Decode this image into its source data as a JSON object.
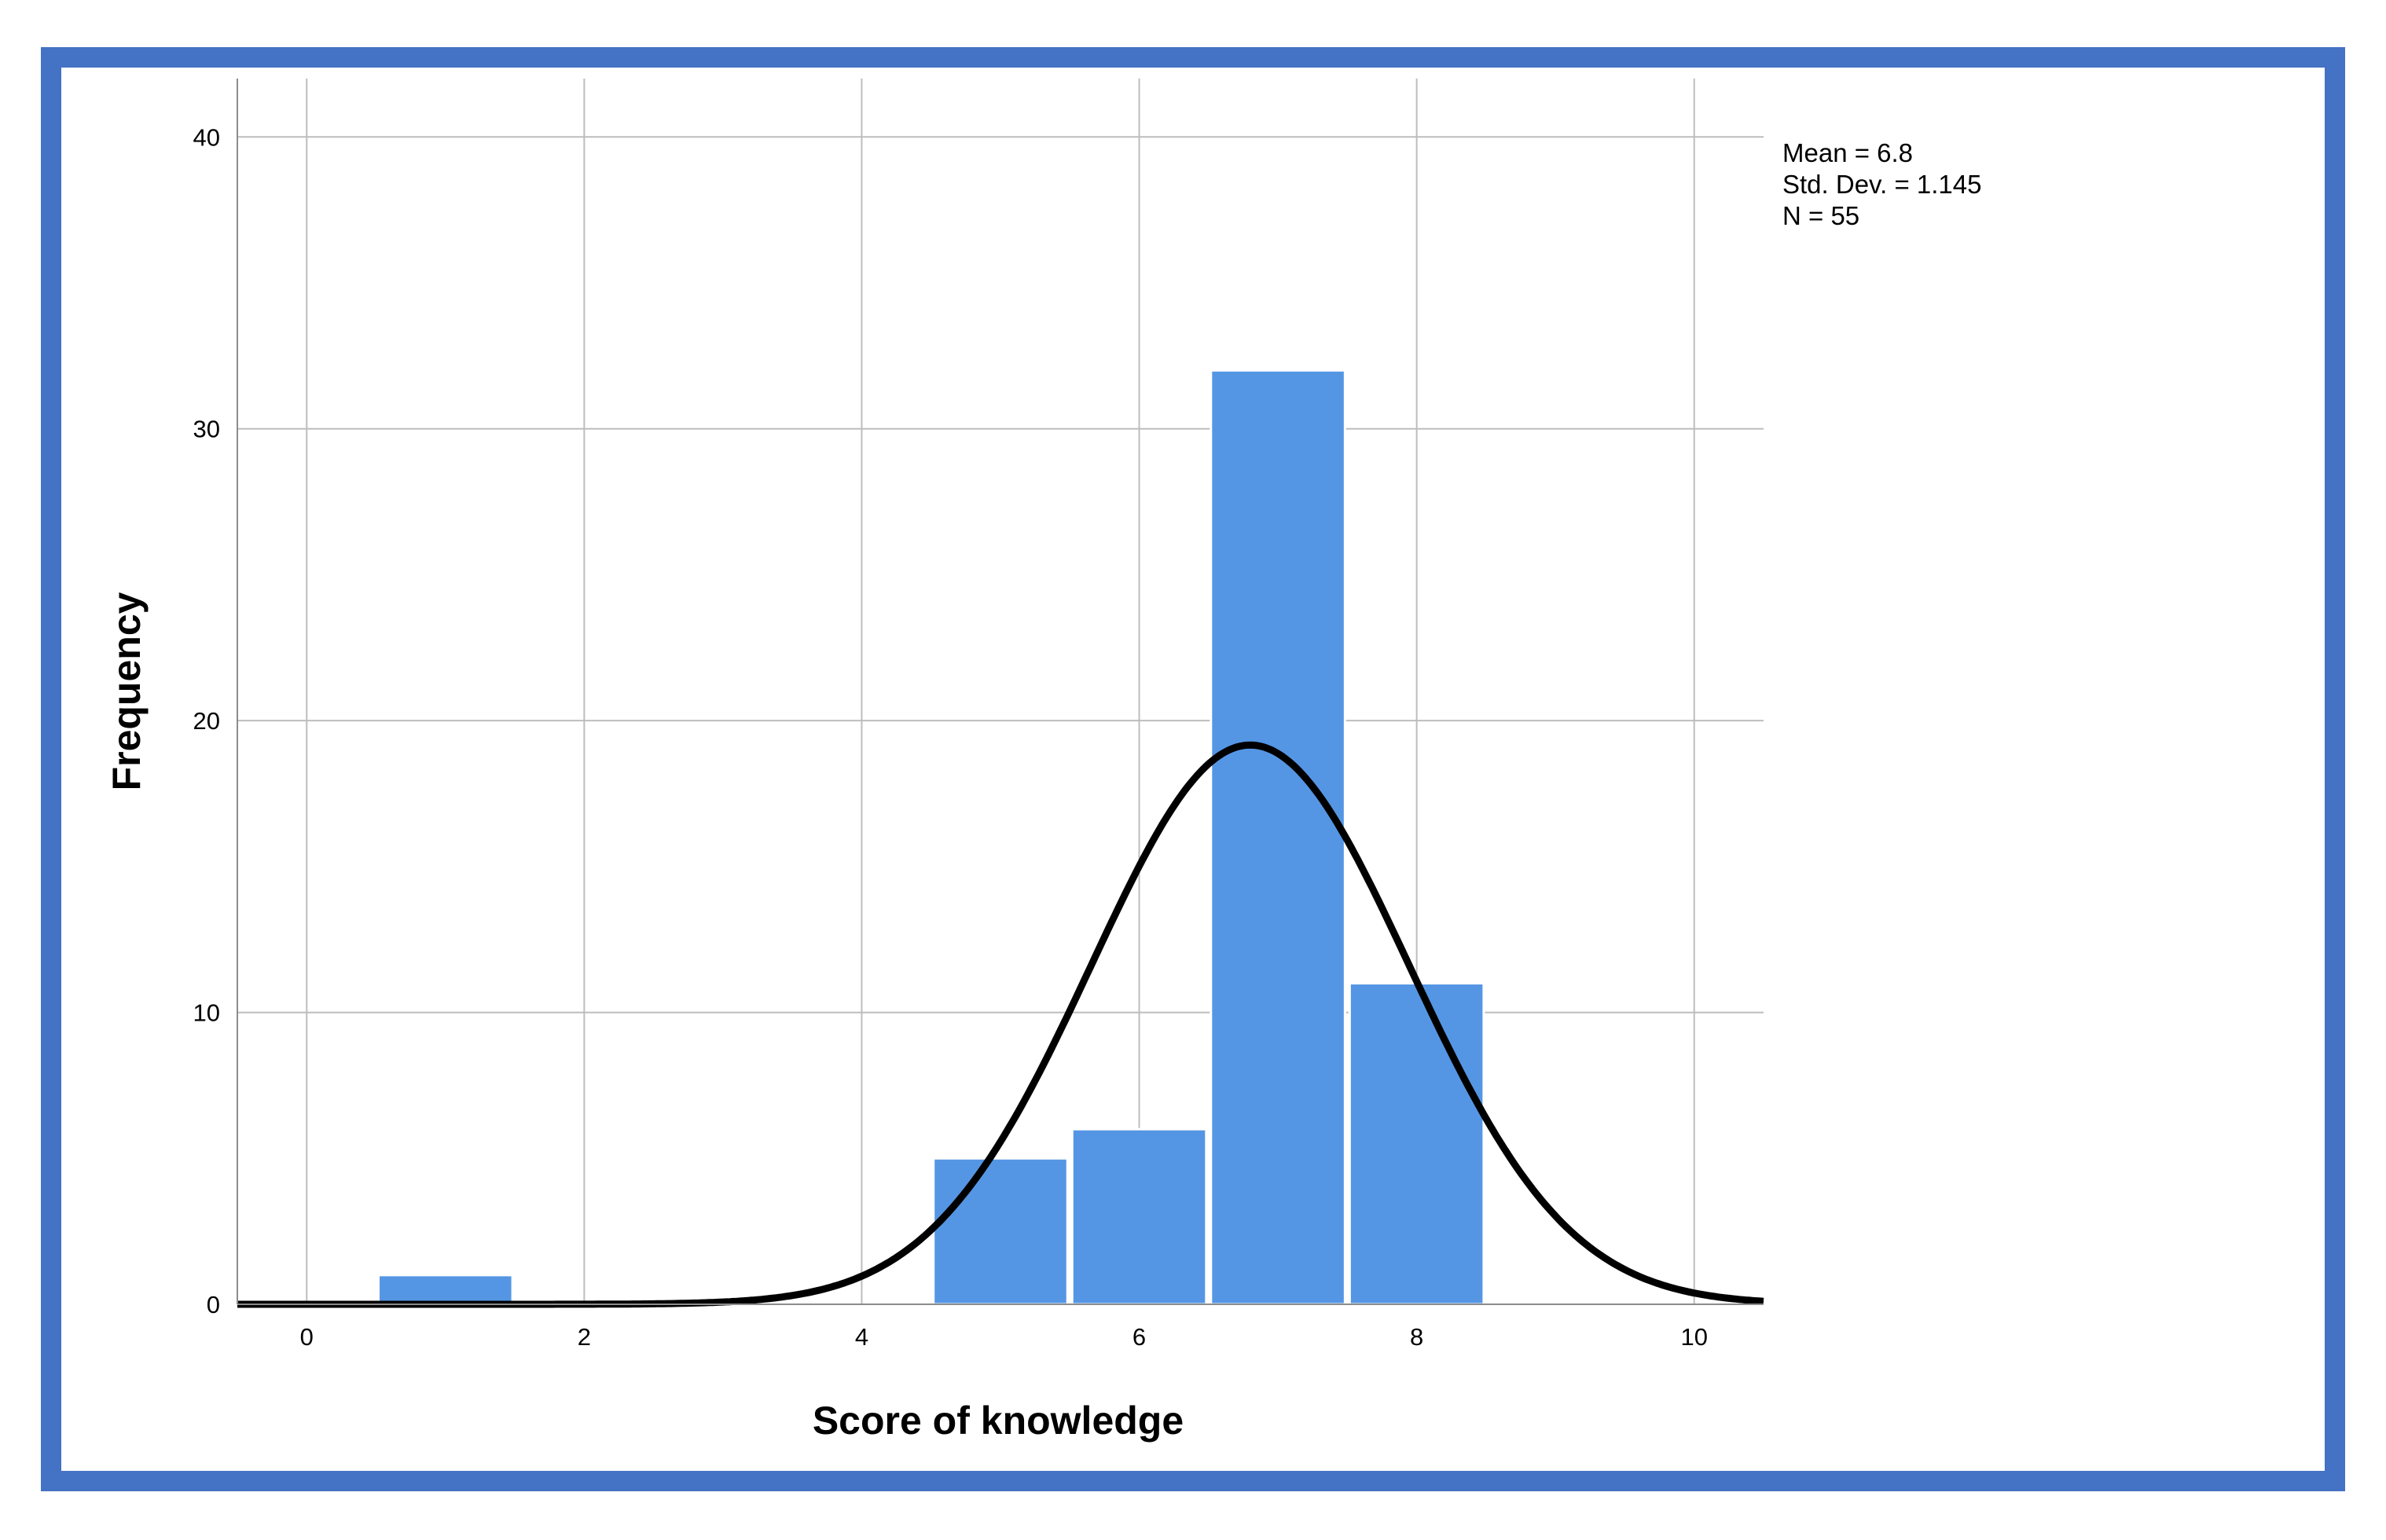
{
  "chart_data": {
    "type": "bar",
    "subtype": "histogram",
    "xlabel": "Score of knowledge",
    "ylabel": "Frequency",
    "xlim": [
      -0.5,
      10.5
    ],
    "ylim": [
      0,
      42
    ],
    "x_ticks": [
      0,
      2,
      4,
      6,
      8,
      10
    ],
    "y_ticks": [
      0,
      10,
      20,
      30,
      40
    ],
    "grid": true,
    "bins": [
      {
        "x": 1,
        "value": 1
      },
      {
        "x": 5,
        "value": 5
      },
      {
        "x": 6,
        "value": 6
      },
      {
        "x": 7,
        "value": 32
      },
      {
        "x": 8,
        "value": 11
      }
    ],
    "bin_width": 1,
    "normal_curve": {
      "mean": 6.8,
      "std": 1.145,
      "n": 55
    },
    "stats": [
      "Mean = 6.8",
      "Std. Dev. = 1.145",
      "N = 55"
    ],
    "colors": {
      "bar": "#5596e4",
      "curve": "#000000",
      "grid": "#bdbdbd",
      "frame": "#4472c4"
    }
  }
}
